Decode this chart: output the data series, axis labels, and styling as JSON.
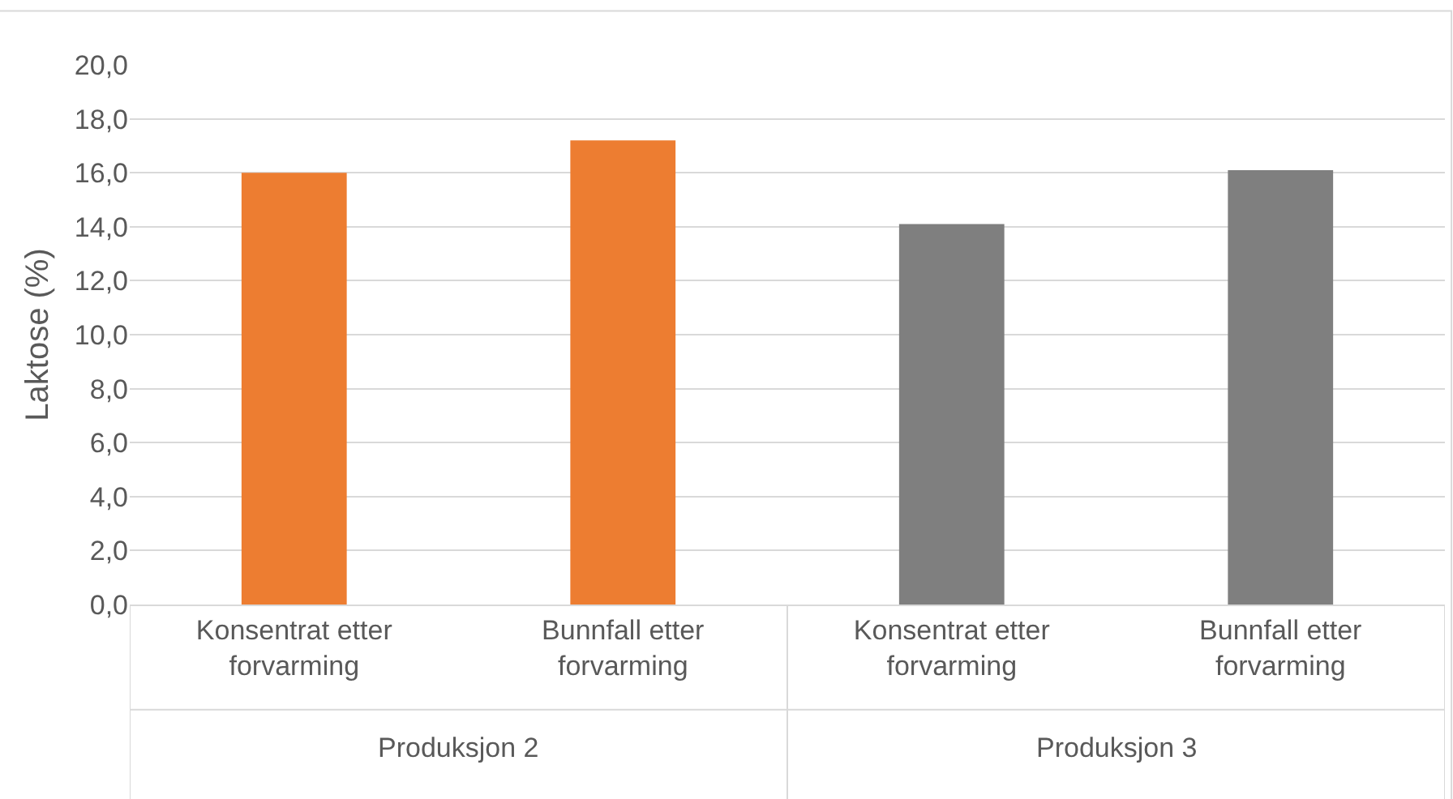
{
  "chart_data": {
    "type": "bar",
    "ylabel": "Laktose (%)",
    "categories": [
      "Konsentrat etter forvarming",
      "Bunnfall etter forvarming",
      "Konsentrat etter forvarming",
      "Bunnfall etter forvarming"
    ],
    "values": [
      16.0,
      17.2,
      14.1,
      16.1
    ],
    "colors": [
      "#ed7d31",
      "#ed7d31",
      "#7f7f7f",
      "#7f7f7f"
    ],
    "ylim": [
      0,
      20
    ],
    "yticks": [
      {
        "value": 0,
        "label": "0,0"
      },
      {
        "value": 2,
        "label": "2,0"
      },
      {
        "value": 4,
        "label": "4,0"
      },
      {
        "value": 6,
        "label": "6,0"
      },
      {
        "value": 8,
        "label": "8,0"
      },
      {
        "value": 10,
        "label": "10,0"
      },
      {
        "value": 12,
        "label": "12,0"
      },
      {
        "value": 14,
        "label": "14,0"
      },
      {
        "value": 16,
        "label": "16,0"
      },
      {
        "value": 18,
        "label": "18,0"
      },
      {
        "value": 20,
        "label": "20,0"
      }
    ],
    "annotations": [
      "Produksjon 2",
      "Produksjon 3"
    ],
    "grid": "y"
  }
}
